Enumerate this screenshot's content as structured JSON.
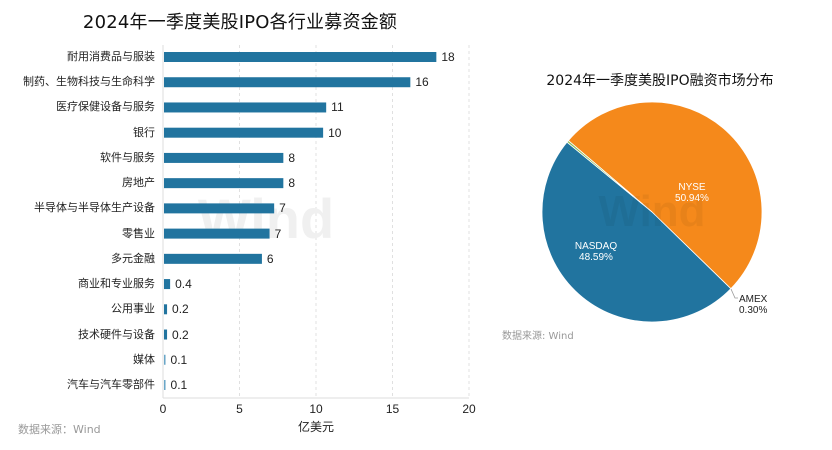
{
  "left_chart": {
    "title": "2024年一季度美股IPO各行业募资金额",
    "xlabel": "亿美元",
    "source": "数据来源：Wind",
    "ticks": [
      "0",
      "5",
      "10",
      "15",
      "20"
    ],
    "watermark": "Wind"
  },
  "right_chart": {
    "title": "2024年一季度美股IPO融资市场分布",
    "source": "数据来源: Wind",
    "watermark": "Wind",
    "slices": [
      {
        "name": "NYSE",
        "pct": "50.94%"
      },
      {
        "name": "NASDAQ",
        "pct": "48.59%"
      },
      {
        "name": "AMEX",
        "pct": "0.30%"
      }
    ]
  },
  "colors": {
    "bar": "#21749f",
    "nyse": "#f5891b",
    "nasdaq": "#21749f",
    "amex": "#8dbb55",
    "grid": "#e0e0e0"
  },
  "chart_data": [
    {
      "type": "bar",
      "orientation": "horizontal",
      "title": "2024年一季度美股IPO各行业募资金额",
      "xlabel": "亿美元",
      "ylabel": "",
      "xlim": [
        0,
        20
      ],
      "xticks": [
        0,
        5,
        10,
        15,
        20
      ],
      "grid": "vertical dashed",
      "categories": [
        "耐用消费品与服装",
        "制药、生物科技与生命科学",
        "医疗保健设备与服务",
        "银行",
        "软件与服务",
        "房地产",
        "半导体与半导体生产设备",
        "零售业",
        "多元金融",
        "商业和专业服务",
        "公用事业",
        "技术硬件与设备",
        "媒体",
        "汽车与汽车零部件"
      ],
      "values": [
        17.8,
        16.1,
        10.6,
        10.4,
        7.8,
        7.8,
        7.2,
        6.9,
        6.4,
        0.4,
        0.2,
        0.2,
        0.1,
        0.1
      ],
      "data_labels": [
        "18",
        "16",
        "11",
        "10",
        "8",
        "8",
        "7",
        "7",
        "6",
        "0.4",
        "0.2",
        "0.2",
        "0.1",
        "0.1"
      ],
      "source": "数据来源：Wind"
    },
    {
      "type": "pie",
      "title": "2024年一季度美股IPO融资市场分布",
      "labels": [
        "NYSE",
        "NASDAQ",
        "AMEX"
      ],
      "values": [
        50.94,
        48.59,
        0.3
      ],
      "data_labels": [
        "50.94%",
        "48.59%",
        "0.30%"
      ],
      "colors": [
        "#f5891b",
        "#21749f",
        "#8dbb55"
      ],
      "source": "数据来源: Wind"
    }
  ]
}
